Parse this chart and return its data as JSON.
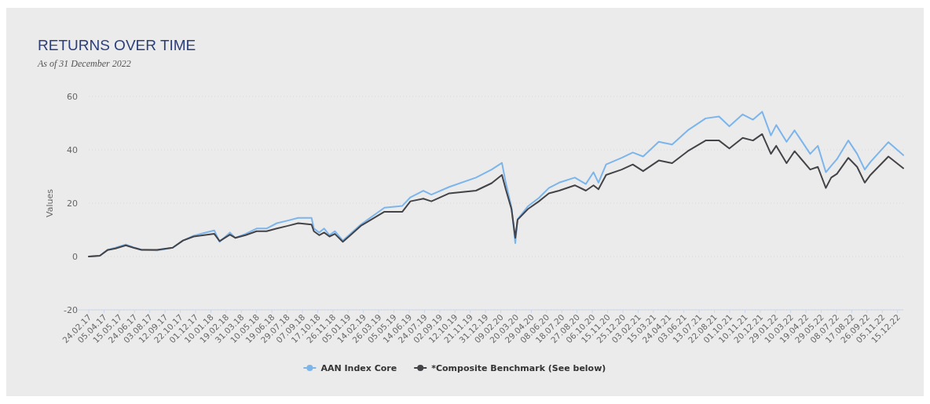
{
  "chart_data": {
    "type": "line",
    "title": "RETURNS OVER TIME",
    "subtitle": "As of 31 December 2022",
    "ylabel": "Values",
    "x": [
      "2017-02-24",
      "2017-03-25",
      "2017-04-14",
      "2017-05-05",
      "2017-06-01",
      "2017-06-21",
      "2017-07-12",
      "2017-08-22",
      "2017-10-02",
      "2017-10-29",
      "2017-11-26",
      "2017-12-23",
      "2018-01-19",
      "2018-02-02",
      "2018-03-01",
      "2018-03-15",
      "2018-04-11",
      "2018-05-10",
      "2018-06-05",
      "2018-07-02",
      "2018-07-31",
      "2018-08-27",
      "2018-10-01",
      "2018-10-07",
      "2018-10-21",
      "2018-11-03",
      "2018-11-17",
      "2018-12-01",
      "2018-12-22",
      "2019-01-11",
      "2019-02-07",
      "2019-04-10",
      "2019-05-27",
      "2019-06-17",
      "2019-07-21",
      "2019-08-11",
      "2019-09-27",
      "2019-12-06",
      "2020-01-16",
      "2020-02-12",
      "2020-02-22",
      "2020-03-08",
      "2020-03-18",
      "2020-03-24",
      "2020-04-20",
      "2020-05-19",
      "2020-06-14",
      "2020-07-11",
      "2020-08-21",
      "2020-09-19",
      "2020-10-09",
      "2020-10-22",
      "2020-11-11",
      "2020-12-22",
      "2021-01-20",
      "2021-02-16",
      "2021-03-29",
      "2021-05-03",
      "2021-06-13",
      "2021-07-30",
      "2021-09-03",
      "2021-09-30",
      "2021-11-04",
      "2021-12-01",
      "2021-12-25",
      "2022-01-17",
      "2022-01-31",
      "2022-02-27",
      "2022-03-20",
      "2022-04-30",
      "2022-05-20",
      "2022-06-10",
      "2022-06-24",
      "2022-07-09",
      "2022-08-08",
      "2022-08-31",
      "2022-09-20",
      "2022-10-05",
      "2022-11-21",
      "2022-12-30"
    ],
    "series": [
      {
        "name": "AAN Index Core",
        "color": "#7cb5ec",
        "values": [
          0,
          0.3,
          2.5,
          3.3,
          4.5,
          3.5,
          2.6,
          2.3,
          3.3,
          6,
          7.8,
          8.8,
          9.8,
          5.5,
          9,
          7,
          8.5,
          10.5,
          10.5,
          12.5,
          13.5,
          14.5,
          14.5,
          10.5,
          9,
          10.5,
          8,
          9.5,
          6,
          8.5,
          12,
          18.3,
          19,
          22.2,
          24.7,
          23.2,
          26.1,
          29.6,
          32.6,
          35.1,
          27.7,
          18.5,
          5,
          14,
          18.8,
          22,
          25.7,
          27.7,
          29.6,
          27.2,
          31.6,
          27.7,
          34.5,
          37,
          39,
          37.5,
          43,
          42,
          47.3,
          51.8,
          52.5,
          48.8,
          53.3,
          51.3,
          54.3,
          45.4,
          49.3,
          43,
          47.3,
          38.5,
          41.5,
          31.6,
          34,
          36.5,
          43.5,
          38.5,
          32.6,
          35.5,
          42.9,
          38
        ]
      },
      {
        "name": "*Composite Benchmark (See below)",
        "color": "#434348",
        "values": [
          0,
          0.3,
          2.4,
          3,
          4.2,
          3.3,
          2.5,
          2.5,
          3.3,
          6,
          7.5,
          8,
          8.5,
          5.8,
          8.2,
          7,
          8,
          9.5,
          9.5,
          10.5,
          11.5,
          12.5,
          12,
          9.5,
          8,
          9,
          7.5,
          8.5,
          5.5,
          8,
          11.5,
          16.8,
          16.8,
          20.7,
          21.7,
          20.7,
          23.7,
          24.7,
          27.5,
          30.6,
          25.2,
          17.8,
          7,
          13.8,
          17.8,
          20.7,
          23.7,
          24.7,
          26.7,
          24.7,
          26.7,
          25.2,
          30.6,
          32.6,
          34.5,
          32,
          36,
          35,
          39.5,
          43.5,
          43.5,
          40.5,
          44.5,
          43.5,
          45.9,
          38.5,
          41.5,
          35,
          39.5,
          32.6,
          33.6,
          25.7,
          29.6,
          31,
          37,
          33.6,
          27.7,
          30.6,
          37.5,
          33.1
        ]
      }
    ],
    "xlim": [
      "2017-02-24",
      "2022-12-30"
    ],
    "xticks": [
      {
        "value": "2017-02-24",
        "label": "24.02.17"
      },
      {
        "value": "2017-04-05",
        "label": "05.04.17"
      },
      {
        "value": "2017-05-15",
        "label": "15.05.17"
      },
      {
        "value": "2017-06-24",
        "label": "24.06.17"
      },
      {
        "value": "2017-08-03",
        "label": "03.08.17"
      },
      {
        "value": "2017-09-12",
        "label": "12.09.17"
      },
      {
        "value": "2017-10-22",
        "label": "22.10.17"
      },
      {
        "value": "2017-12-01",
        "label": "01.12.17"
      },
      {
        "value": "2018-01-10",
        "label": "10.01.18"
      },
      {
        "value": "2018-02-19",
        "label": "19.02.18"
      },
      {
        "value": "2018-03-31",
        "label": "31.03.18"
      },
      {
        "value": "2018-05-10",
        "label": "10.05.18"
      },
      {
        "value": "2018-06-19",
        "label": "19.06.18"
      },
      {
        "value": "2018-07-29",
        "label": "29.07.18"
      },
      {
        "value": "2018-09-07",
        "label": "07.09.18"
      },
      {
        "value": "2018-10-17",
        "label": "17.10.18"
      },
      {
        "value": "2018-11-26",
        "label": "26.11.18"
      },
      {
        "value": "2019-01-05",
        "label": "05.01.19"
      },
      {
        "value": "2019-02-14",
        "label": "14.02.19"
      },
      {
        "value": "2019-03-26",
        "label": "26.03.19"
      },
      {
        "value": "2019-05-05",
        "label": "05.05.19"
      },
      {
        "value": "2019-06-14",
        "label": "14.06.19"
      },
      {
        "value": "2019-07-24",
        "label": "24.07.19"
      },
      {
        "value": "2019-09-02",
        "label": "02.09.19"
      },
      {
        "value": "2019-10-12",
        "label": "12.10.19"
      },
      {
        "value": "2019-11-21",
        "label": "21.11.19"
      },
      {
        "value": "2019-12-31",
        "label": "31.12.19"
      },
      {
        "value": "2020-02-09",
        "label": "09.02.20"
      },
      {
        "value": "2020-03-20",
        "label": "20.03.20"
      },
      {
        "value": "2020-04-29",
        "label": "29.04.20"
      },
      {
        "value": "2020-06-08",
        "label": "08.06.20"
      },
      {
        "value": "2020-07-18",
        "label": "18.07.20"
      },
      {
        "value": "2020-08-27",
        "label": "27.08.20"
      },
      {
        "value": "2020-10-06",
        "label": "06.10.20"
      },
      {
        "value": "2020-11-15",
        "label": "15.11.20"
      },
      {
        "value": "2020-12-25",
        "label": "25.12.20"
      },
      {
        "value": "2021-02-03",
        "label": "03.02.21"
      },
      {
        "value": "2021-03-15",
        "label": "15.03.21"
      },
      {
        "value": "2021-04-24",
        "label": "24.04.21"
      },
      {
        "value": "2021-06-03",
        "label": "03.06.21"
      },
      {
        "value": "2021-07-13",
        "label": "13.07.21"
      },
      {
        "value": "2021-08-22",
        "label": "22.08.21"
      },
      {
        "value": "2021-10-01",
        "label": "01.10.21"
      },
      {
        "value": "2021-11-10",
        "label": "10.11.21"
      },
      {
        "value": "2021-12-20",
        "label": "20.12.21"
      },
      {
        "value": "2022-01-29",
        "label": "29.01.22"
      },
      {
        "value": "2022-03-10",
        "label": "10.03.22"
      },
      {
        "value": "2022-04-19",
        "label": "19.04.22"
      },
      {
        "value": "2022-05-29",
        "label": "29.05.22"
      },
      {
        "value": "2022-07-08",
        "label": "08.07.22"
      },
      {
        "value": "2022-08-17",
        "label": "17.08.22"
      },
      {
        "value": "2022-09-26",
        "label": "26.09.22"
      },
      {
        "value": "2022-11-05",
        "label": "05.11.22"
      },
      {
        "value": "2022-12-15",
        "label": "15.12.22"
      }
    ],
    "ylim": [
      -20,
      60
    ],
    "yticks": [
      -20,
      0,
      20,
      40,
      60
    ],
    "grid": "y",
    "legend": "bottom",
    "marker": "none",
    "line_style": "solid"
  }
}
